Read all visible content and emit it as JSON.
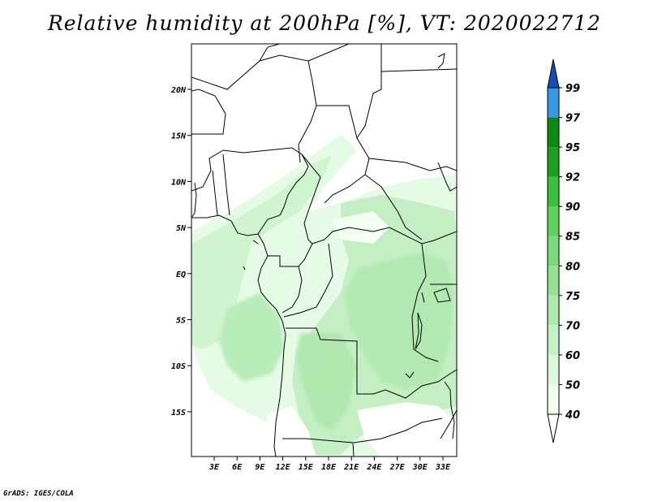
{
  "title": "Relative humidity at 200hPa [%], VT: 2020022712",
  "credit": "GrADS: IGES/COLA",
  "map": {
    "lon_labels": [
      "3E",
      "6E",
      "9E",
      "12E",
      "15E",
      "18E",
      "21E",
      "24E",
      "27E",
      "30E",
      "33E"
    ],
    "lat_labels": [
      "20N",
      "15N",
      "10N",
      "5N",
      "EQ",
      "5S",
      "10S",
      "15S"
    ],
    "land_color": "#ffffff",
    "border_color": "#000000"
  },
  "colorbar": {
    "levels": [
      "40",
      "50",
      "60",
      "70",
      "75",
      "80",
      "85",
      "90",
      "92",
      "95",
      "97",
      "99"
    ],
    "colors": [
      "#f0fff0",
      "#dcf8dc",
      "#c6f0c6",
      "#afe8af",
      "#96e096",
      "#7dd87d",
      "#5fcf5f",
      "#3cbf3c",
      "#1e9e1e",
      "#108810",
      "#3c96e6",
      "#1e6ed2",
      "#1450b4"
    ]
  },
  "chart_data": {
    "type": "heatmap",
    "title": "Relative humidity at 200hPa [%], VT: 2020022712",
    "xlabel": "",
    "ylabel": "",
    "xlim": [
      0,
      35
    ],
    "ylim": [
      -20,
      25
    ],
    "x_ticks": [
      "3E",
      "6E",
      "9E",
      "12E",
      "15E",
      "18E",
      "21E",
      "24E",
      "27E",
      "30E",
      "33E"
    ],
    "y_ticks": [
      "20N",
      "15N",
      "10N",
      "5N",
      "EQ",
      "5S",
      "10S",
      "15S"
    ],
    "legend": "colorbar right",
    "units": "%",
    "contour_levels": [
      40,
      50,
      60,
      70,
      75,
      80,
      85,
      90,
      92,
      95,
      97,
      99
    ]
  }
}
